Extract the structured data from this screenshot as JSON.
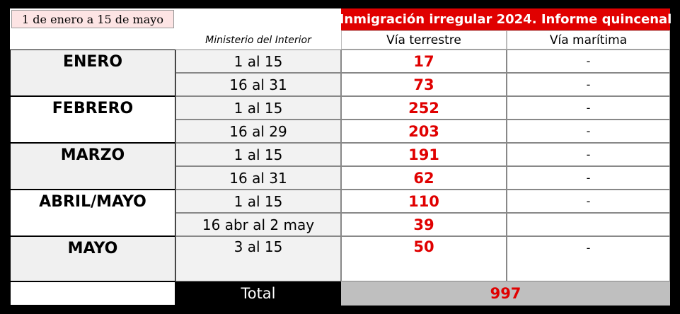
{
  "header": {
    "date_range": "1 de enero a 15 de  mayo",
    "source": "Ministerio del Interior",
    "title": "Inmigración irregular 2024. Informe quincenal",
    "columns": [
      "Vía terrestre",
      "Vía marítima"
    ]
  },
  "table": {
    "months": [
      {
        "name": "ENERO",
        "periods": [
          {
            "period": "1 al 15",
            "land": 17,
            "sea": "-"
          },
          {
            "period": "16 al 31",
            "land": 73,
            "sea": "-"
          }
        ]
      },
      {
        "name": "FEBRERO",
        "periods": [
          {
            "period": "1 al 15",
            "land": 252,
            "sea": "-"
          },
          {
            "period": "16 al 29",
            "land": 203,
            "sea": "-"
          }
        ]
      },
      {
        "name": "MARZO",
        "periods": [
          {
            "period": "1 al 15",
            "land": 191,
            "sea": "-"
          },
          {
            "period": "16 al 31",
            "land": 62,
            "sea": "-"
          }
        ]
      },
      {
        "name": "ABRIL/MAYO",
        "periods": [
          {
            "period": "1 al 15",
            "land": 110,
            "sea": "-"
          },
          {
            "period": "16 abr al 2 may",
            "land": 39
          }
        ]
      },
      {
        "name": "MAYO",
        "periods": [
          {
            "period": "3 al 15",
            "land": 50,
            "sea": "-"
          }
        ]
      }
    ],
    "total_label": "Total",
    "total": 997
  }
}
